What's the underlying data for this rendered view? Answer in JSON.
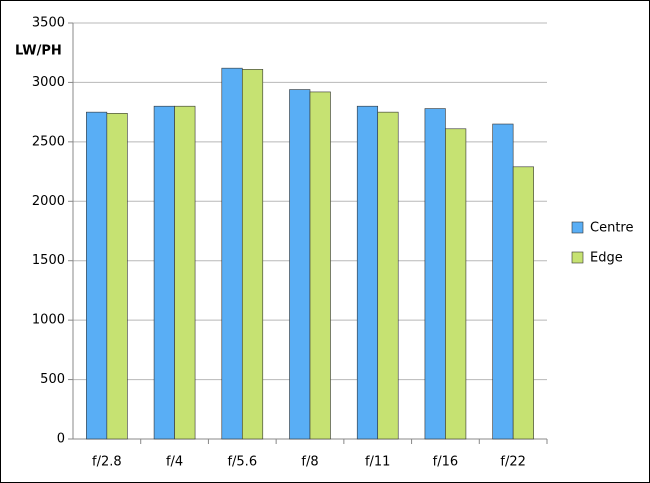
{
  "chart_data": {
    "type": "bar",
    "y_label": "LW/PH",
    "categories": [
      "f/2.8",
      "f/4",
      "f/5.6",
      "f/8",
      "f/11",
      "f/16",
      "f/22"
    ],
    "series": [
      {
        "name": "Centre",
        "color": "#59aef5",
        "values": [
          2750,
          2800,
          3120,
          2940,
          2800,
          2780,
          2650
        ]
      },
      {
        "name": "Edge",
        "color": "#c6e272",
        "values": [
          2740,
          2800,
          3110,
          2920,
          2750,
          2610,
          2290
        ]
      }
    ],
    "ylim": [
      0,
      3500
    ],
    "yticks": [
      0,
      500,
      1000,
      1500,
      2000,
      2500,
      3000,
      3500
    ],
    "grid": true,
    "legend": "right"
  }
}
